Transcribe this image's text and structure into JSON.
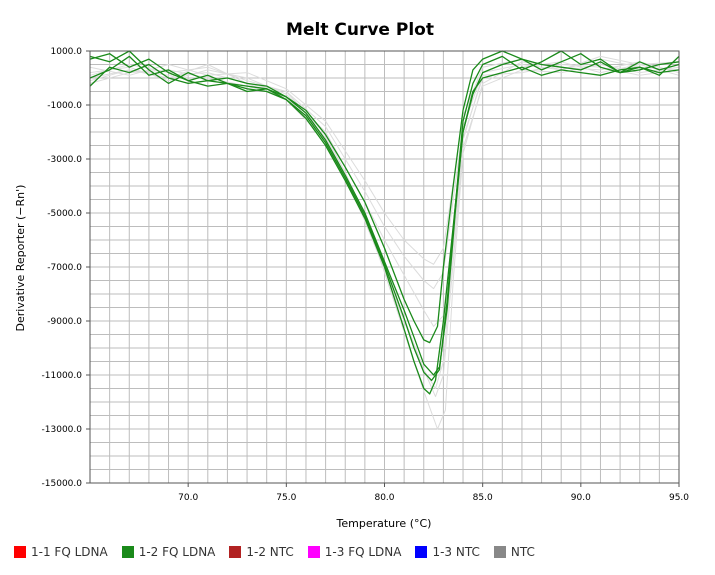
{
  "chart_data": {
    "type": "line",
    "title": "Melt Curve Plot",
    "xlabel": "Temperature (°C)",
    "ylabel": "Derivative Reporter (−Rn')",
    "xlim": [
      65.0,
      95.0
    ],
    "ylim": [
      -15000.0,
      1000.0
    ],
    "x_ticks": [
      {
        "value": 70.0,
        "label": "70.0"
      },
      {
        "value": 75.0,
        "label": "75.0"
      },
      {
        "value": 80.0,
        "label": "80.0"
      },
      {
        "value": 85.0,
        "label": "85.0"
      },
      {
        "value": 90.0,
        "label": "90.0"
      },
      {
        "value": 95.0,
        "label": "95.0"
      }
    ],
    "y_ticks": [
      {
        "value": 1000.0,
        "label": "1000.0"
      },
      {
        "value": -1000.0,
        "label": "-1000.0"
      },
      {
        "value": -3000.0,
        "label": "-3000.0"
      },
      {
        "value": -5000.0,
        "label": "-5000.0"
      },
      {
        "value": -7000.0,
        "label": "-7000.0"
      },
      {
        "value": -9000.0,
        "label": "-9000.0"
      },
      {
        "value": -11000.0,
        "label": "-11000.0"
      },
      {
        "value": -13000.0,
        "label": "-13000.0"
      },
      {
        "value": -15000.0,
        "label": "-15000.0"
      }
    ],
    "grid": true,
    "legend_position": "bottom",
    "legend": [
      {
        "label": "1-1 FQ LDNA",
        "color": "#ff0000"
      },
      {
        "label": "1-2 FQ LDNA",
        "color": "#1a8a1a"
      },
      {
        "label": "1-2 NTC",
        "color": "#b22222"
      },
      {
        "label": "1-3 FQ LDNA",
        "color": "#ff00ff"
      },
      {
        "label": "1-3 NTC",
        "color": "#0000ff"
      },
      {
        "label": "NTC",
        "color": "#888888"
      }
    ],
    "series": [
      {
        "color": "#1a8a1a",
        "x": [
          65,
          66,
          67,
          68,
          69,
          70,
          71,
          72,
          73,
          74,
          75,
          76,
          77,
          78,
          79,
          80,
          81,
          81.5,
          82,
          82.3,
          82.6,
          83,
          83.5,
          84,
          84.5,
          85,
          86,
          87,
          88,
          89,
          90,
          91,
          92,
          93,
          94,
          95
        ],
        "y": [
          0,
          300,
          800,
          100,
          300,
          -100,
          100,
          -200,
          -300,
          -400,
          -800,
          -1500,
          -2500,
          -3800,
          -5200,
          -7000,
          -9300,
          -10500,
          -11500,
          -11700,
          -11200,
          -9000,
          -5500,
          -2000,
          -500,
          0,
          200,
          400,
          100,
          300,
          200,
          100,
          300,
          400,
          200,
          300
        ]
      },
      {
        "color": "#1a8a1a",
        "x": [
          65,
          66,
          67,
          68,
          69,
          70,
          71,
          72,
          73,
          74,
          75,
          76,
          77,
          78,
          79,
          80,
          81,
          81.5,
          82,
          82.5,
          82.8,
          83.2,
          83.6,
          84,
          84.5,
          85,
          86,
          87,
          88,
          89,
          90,
          91,
          92,
          93,
          94,
          95
        ],
        "y": [
          800,
          600,
          1000,
          300,
          -200,
          200,
          -100,
          -200,
          -500,
          -400,
          -700,
          -1300,
          -2300,
          -3600,
          -5000,
          -6800,
          -8600,
          -9600,
          -10600,
          -11000,
          -10700,
          -8500,
          -5000,
          -2000,
          -600,
          200,
          500,
          700,
          300,
          600,
          900,
          400,
          200,
          300,
          500,
          600
        ]
      },
      {
        "color": "#1a8a1a",
        "x": [
          65,
          66,
          67,
          68,
          69,
          70,
          71,
          72,
          73,
          74,
          75,
          76,
          77,
          78,
          79,
          80,
          81,
          81.5,
          82,
          82.3,
          82.7,
          83,
          83.5,
          84,
          84.5,
          85,
          86,
          87,
          88,
          89,
          90,
          91,
          92,
          93,
          94,
          95
        ],
        "y": [
          -300,
          400,
          200,
          500,
          0,
          -200,
          -100,
          0,
          -200,
          -300,
          -700,
          -1200,
          -2100,
          -3300,
          -4600,
          -6300,
          -8200,
          -9000,
          -9700,
          -9800,
          -9200,
          -7000,
          -4000,
          -1200,
          300,
          700,
          1100,
          700,
          500,
          400,
          300,
          600,
          200,
          400,
          100,
          800
        ]
      },
      {
        "color": "#1a8a1a",
        "x": [
          65,
          66,
          67,
          68,
          69,
          70,
          71,
          72,
          73,
          74,
          75,
          76,
          77,
          78,
          79,
          80,
          81,
          81.5,
          82,
          82.4,
          82.8,
          83.2,
          83.6,
          84,
          84.5,
          85,
          86,
          87,
          88,
          89,
          90,
          91,
          92,
          93,
          94,
          95
        ],
        "y": [
          700,
          900,
          400,
          700,
          200,
          -100,
          -300,
          -200,
          -400,
          -500,
          -800,
          -1400,
          -2400,
          -3700,
          -5100,
          -6900,
          -8900,
          -10000,
          -10900,
          -11200,
          -10800,
          -8200,
          -4800,
          -1600,
          -200,
          500,
          800,
          300,
          600,
          1000,
          500,
          700,
          200,
          600,
          300,
          500
        ]
      },
      {
        "color": "#dcdcdc",
        "x": [
          65,
          67,
          69,
          71,
          73,
          75,
          77,
          78,
          79,
          80,
          81,
          82,
          82.5,
          83,
          83.5,
          84,
          85,
          87,
          89,
          91,
          93,
          95
        ],
        "y": [
          0,
          300,
          100,
          200,
          -200,
          -500,
          -1800,
          -3000,
          -4200,
          -5500,
          -6600,
          -7500,
          -7800,
          -7200,
          -4500,
          -1800,
          200,
          500,
          300,
          700,
          400,
          300
        ]
      },
      {
        "color": "#dcdcdc",
        "x": [
          65,
          67,
          69,
          71,
          73,
          75,
          77,
          78,
          79,
          80,
          81,
          82,
          82.5,
          83,
          83.5,
          84,
          85,
          87,
          89,
          91,
          93,
          95
        ],
        "y": [
          200,
          400,
          -100,
          300,
          0,
          -600,
          -2000,
          -3300,
          -4600,
          -6000,
          -7300,
          -8600,
          -9200,
          -8800,
          -5500,
          -2200,
          0,
          400,
          600,
          200,
          500,
          100
        ]
      },
      {
        "color": "#dcdcdc",
        "x": [
          65,
          67,
          69,
          71,
          73,
          75,
          77,
          78,
          79,
          80,
          81,
          82,
          82.6,
          83,
          83.5,
          84,
          85,
          87,
          89,
          91,
          93,
          95
        ],
        "y": [
          -200,
          200,
          300,
          0,
          -300,
          -700,
          -2200,
          -3600,
          -5200,
          -7000,
          -8900,
          -10800,
          -11800,
          -11000,
          -6800,
          -2600,
          -300,
          300,
          200,
          500,
          200,
          400
        ]
      },
      {
        "color": "#dcdcdc",
        "x": [
          65,
          67,
          69,
          71,
          73,
          75,
          77,
          78,
          79,
          80,
          81,
          82,
          82.7,
          83.1,
          83.5,
          84,
          85,
          87,
          89,
          91,
          93,
          95
        ],
        "y": [
          100,
          500,
          200,
          400,
          -100,
          -500,
          -2100,
          -3500,
          -5100,
          -7200,
          -9400,
          -11600,
          -13000,
          -12300,
          -7500,
          -2800,
          -200,
          600,
          400,
          300,
          600,
          200
        ]
      },
      {
        "color": "#dcdcdc",
        "x": [
          65,
          67,
          69,
          71,
          73,
          75,
          77,
          78,
          79,
          80,
          81,
          82,
          82.5,
          83,
          83.5,
          84,
          85,
          87,
          89,
          91,
          93,
          95
        ],
        "y": [
          400,
          100,
          500,
          100,
          200,
          -400,
          -1600,
          -2700,
          -3800,
          -5000,
          -6000,
          -6700,
          -6900,
          -6300,
          -3900,
          -1400,
          400,
          700,
          300,
          800,
          500,
          600
        ]
      },
      {
        "color": "#dcdcdc",
        "x": [
          65,
          67,
          69,
          71,
          73,
          75,
          77,
          78,
          79,
          80,
          81,
          82,
          82.6,
          83,
          83.5,
          84,
          85,
          87,
          89,
          91,
          93,
          95
        ],
        "y": [
          -100,
          300,
          0,
          500,
          -200,
          -800,
          -2300,
          -3700,
          -5300,
          -7100,
          -9000,
          -10800,
          -11500,
          -10500,
          -6300,
          -2300,
          100,
          200,
          500,
          400,
          100,
          300
        ]
      }
    ]
  }
}
